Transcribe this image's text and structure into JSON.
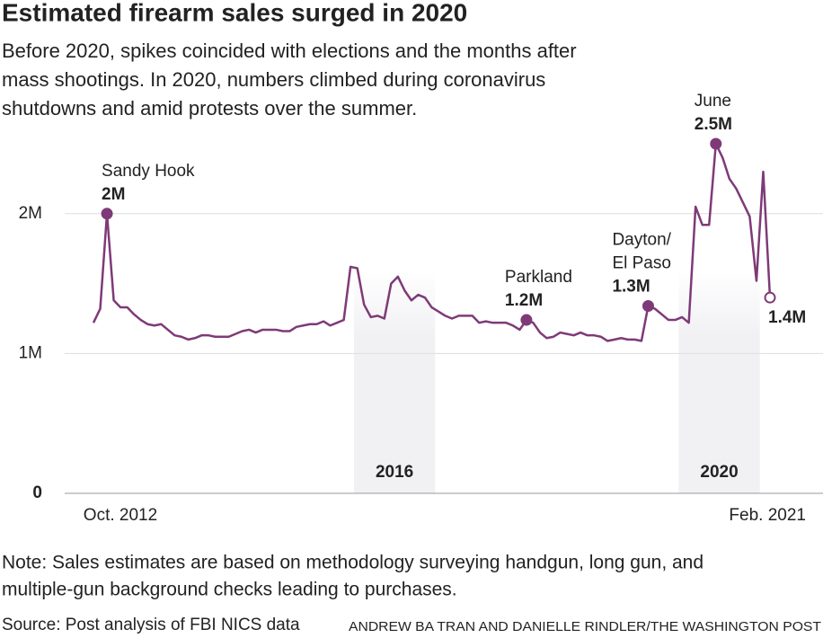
{
  "chart_data": {
    "type": "line",
    "title": "Estimated firearm sales surged in 2020",
    "subtitle": [
      "Before 2020, spikes coincided with elections and the months after",
      "mass shootings. In 2020, numbers climbed during coronavirus",
      "shutdowns and amid protests over the summer."
    ],
    "categories": [
      "Oct. 2012",
      null,
      null,
      null,
      null,
      null,
      null,
      null,
      null,
      null,
      null,
      null,
      null,
      null,
      null,
      null,
      null,
      null,
      null,
      null,
      null,
      null,
      null,
      null,
      null,
      null,
      null,
      null,
      null,
      null,
      null,
      null,
      null,
      null,
      null,
      null,
      null,
      null,
      null,
      null,
      null,
      null,
      null,
      null,
      null,
      null,
      null,
      null,
      null,
      null,
      null,
      null,
      null,
      null,
      null,
      null,
      null,
      null,
      null,
      null,
      null,
      null,
      null,
      null,
      null,
      null,
      null,
      null,
      null,
      null,
      null,
      null,
      null,
      null,
      null,
      null,
      null,
      null,
      null,
      null,
      null,
      null,
      null,
      null,
      null,
      null,
      null,
      null,
      null,
      null,
      null,
      null,
      null,
      null,
      null,
      null,
      null,
      null,
      null,
      null,
      "Feb. 2021"
    ],
    "series": [
      {
        "color": "#7e3a78",
        "values": [
          1.22,
          1.32,
          2.0,
          1.38,
          1.33,
          1.33,
          1.28,
          1.24,
          1.21,
          1.2,
          1.21,
          1.17,
          1.13,
          1.12,
          1.1,
          1.11,
          1.13,
          1.13,
          1.12,
          1.12,
          1.12,
          1.14,
          1.16,
          1.17,
          1.15,
          1.17,
          1.17,
          1.17,
          1.16,
          1.16,
          1.19,
          1.2,
          1.21,
          1.21,
          1.23,
          1.2,
          1.22,
          1.24,
          1.62,
          1.61,
          1.35,
          1.26,
          1.27,
          1.25,
          1.5,
          1.55,
          1.45,
          1.38,
          1.42,
          1.4,
          1.33,
          1.3,
          1.27,
          1.25,
          1.27,
          1.27,
          1.27,
          1.22,
          1.23,
          1.22,
          1.22,
          1.22,
          1.2,
          1.17,
          1.24,
          1.22,
          1.15,
          1.11,
          1.12,
          1.15,
          1.14,
          1.13,
          1.15,
          1.13,
          1.13,
          1.12,
          1.09,
          1.1,
          1.11,
          1.1,
          1.1,
          1.09,
          1.34,
          1.32,
          1.28,
          1.24,
          1.24,
          1.26,
          1.22,
          2.05,
          1.92,
          1.92,
          2.5,
          2.4,
          2.25,
          2.18,
          2.08,
          1.98,
          1.52,
          2.3,
          1.4
        ],
        "value_labels": [
          null,
          null,
          "2M",
          null,
          null,
          null,
          null,
          null,
          null,
          null,
          null,
          null,
          null,
          null,
          null,
          null,
          null,
          null,
          null,
          null,
          null,
          null,
          null,
          null,
          null,
          null,
          null,
          null,
          null,
          null,
          null,
          null,
          null,
          null,
          null,
          null,
          null,
          null,
          null,
          null,
          null,
          null,
          null,
          null,
          null,
          null,
          null,
          null,
          null,
          null,
          null,
          null,
          null,
          null,
          null,
          null,
          null,
          null,
          null,
          null,
          null,
          null,
          null,
          null,
          "1.2M",
          null,
          null,
          null,
          null,
          null,
          null,
          null,
          null,
          null,
          null,
          null,
          null,
          null,
          null,
          null,
          null,
          null,
          "1.3M",
          null,
          null,
          null,
          null,
          null,
          null,
          null,
          null,
          null,
          "2.5M",
          null,
          null,
          null,
          null,
          null,
          null,
          null,
          "1.4M"
        ],
        "point_labels": [
          null,
          null,
          [
            "Sandy Hook"
          ],
          null,
          null,
          null,
          null,
          null,
          null,
          null,
          null,
          null,
          null,
          null,
          null,
          null,
          null,
          null,
          null,
          null,
          null,
          null,
          null,
          null,
          null,
          null,
          null,
          null,
          null,
          null,
          null,
          null,
          null,
          null,
          null,
          null,
          null,
          null,
          null,
          null,
          null,
          null,
          null,
          null,
          null,
          null,
          null,
          null,
          null,
          null,
          null,
          null,
          null,
          null,
          null,
          null,
          null,
          null,
          null,
          null,
          null,
          null,
          null,
          null,
          [
            "Parkland"
          ],
          null,
          null,
          null,
          null,
          null,
          null,
          null,
          null,
          null,
          null,
          null,
          null,
          null,
          null,
          null,
          null,
          null,
          [
            "Dayton/",
            "El Paso"
          ],
          null,
          null,
          null,
          null,
          null,
          null,
          null,
          null,
          null,
          [
            "June"
          ],
          null,
          null,
          null,
          null,
          null,
          null,
          null,
          null
        ]
      }
    ],
    "highlights": [
      "2016",
      "2020"
    ],
    "ylim": [
      0,
      2.5
    ],
    "yticks": [
      0,
      {
        "value": 1,
        "label": "1M"
      },
      {
        "value": 2,
        "label": "2M"
      }
    ],
    "grid": true,
    "note": [
      "Note: Sales estimates are based on methodology surveying handgun, long gun, and",
      "multiple-gun background checks leading to purchases."
    ],
    "source": "Source: Post analysis of FBI NICS data",
    "credit": "ANDREW BA TRAN AND DANIELLE RINDLER/THE WASHINGTON POST"
  }
}
